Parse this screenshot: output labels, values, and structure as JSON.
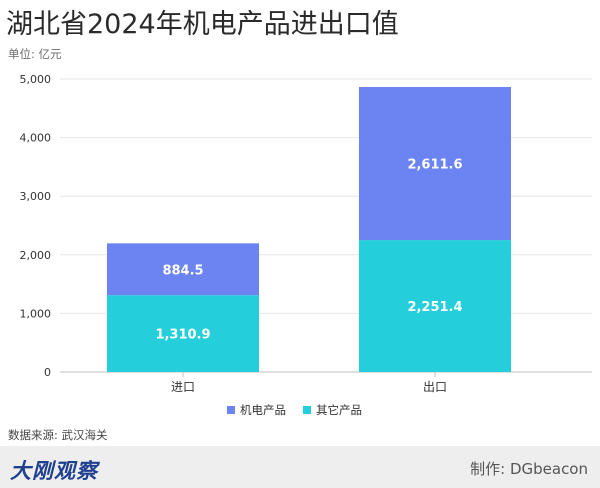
{
  "header": {
    "title": "湖北省2024年机电产品进出口值",
    "unit": "单位: 亿元"
  },
  "footer": {
    "source": "数据来源: 武汉海关",
    "brand": "大刚观察",
    "credit": "制作: DGbeacon"
  },
  "colors": {
    "series_top": "#6b84f2",
    "series_bottom": "#25cedb",
    "gridline": "#e6e6e6",
    "axis": "#bfbfbf",
    "text": "#333333"
  },
  "chart_data": {
    "type": "bar",
    "stacked": true,
    "categories": [
      "进口",
      "出口"
    ],
    "series": [
      {
        "name": "其它产品",
        "values": [
          1310.9,
          2251.4
        ],
        "labels": [
          "1,310.9",
          "2,251.4"
        ]
      },
      {
        "name": "机电产品",
        "values": [
          884.5,
          2611.6
        ],
        "labels": [
          "884.5",
          "2,611.6"
        ]
      }
    ],
    "title": "湖北省2024年机电产品进出口值",
    "xlabel": "",
    "ylabel": "",
    "ylim": [
      0,
      5000
    ],
    "yticks": [
      0,
      1000,
      2000,
      3000,
      4000,
      5000
    ],
    "ytick_labels": [
      "0",
      "1,000",
      "2,000",
      "3,000",
      "4,000",
      "5,000"
    ],
    "legend_items": [
      "机电产品",
      "其它产品"
    ],
    "legend": "bottom-center",
    "grid": true
  }
}
